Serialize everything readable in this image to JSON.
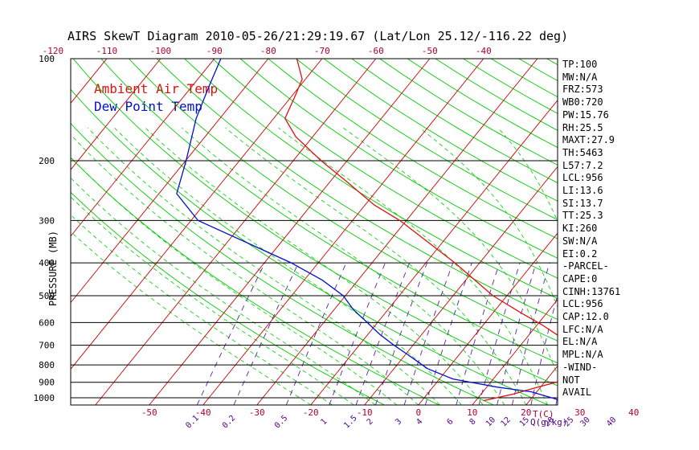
{
  "title": "AIRS SkewT Diagram 2010-05-26/21:29:19.67 (Lat/Lon 25.12/-116.22 deg)",
  "ylabel": "PRESSURE (MB)",
  "xlabel": "T(C)",
  "mixing_ratio_label": "Q(g/kg)",
  "legend": [
    {
      "label": "Ambient Air Temp",
      "color": "#dd1111"
    },
    {
      "label": "Dew Point Temp",
      "color": "#0011cc"
    }
  ],
  "colors": {
    "axis_text": "#b00030",
    "mixing_ratio_text": "#550088",
    "isotherm": "#cc0000",
    "dry_adiabat": "#00cc00",
    "moist_adiabat": "#00cc00",
    "mixing_ratio_line": "#5522aa",
    "isobar": "#000000"
  },
  "indices": [
    "TP:100",
    "MW:N/A",
    "FRZ:573",
    "WB0:720",
    "PW:15.76",
    "RH:25.5",
    "MAXT:27.9",
    "TH:5463",
    "L57:7.2",
    "LCL:956",
    "LI:13.6",
    "SI:13.7",
    "TT:25.3",
    "KI:260",
    "SW:N/A",
    "EI:0.2",
    "-PARCEL-",
    "CAPE:0",
    "CINH:13761",
    "LCL:956",
    "CAP:12.0",
    "LFC:N/A",
    "EL:N/A",
    "MPL:N/A",
    "-WIND-",
    "NOT",
    "AVAIL"
  ],
  "chart_data": {
    "type": "line",
    "title": "AIRS SkewT Diagram 2010-05-26/21:29:19.67 (Lat/Lon 25.12/-116.22 deg)",
    "ylabel": "PRESSURE (MB)",
    "xlabel": "T(C)",
    "y_scale": "log",
    "ylim": [
      1050,
      100
    ],
    "pressure_ticks": [
      100,
      200,
      300,
      400,
      500,
      600,
      700,
      800,
      900,
      1000
    ],
    "top_temp_ticks": [
      -120,
      -110,
      -100,
      -90,
      -80,
      -70,
      -60,
      -50,
      -40
    ],
    "bottom_temp_ticks": [
      -50,
      -40,
      -30,
      -20,
      -10,
      0,
      10,
      20,
      30,
      40
    ],
    "mixing_ratio_ticks": [
      "0.1",
      "0.2",
      "0.5",
      "1",
      "1.5",
      "2",
      "3",
      "4",
      "6",
      "8",
      "10",
      "12",
      "15",
      "20",
      "25",
      "30",
      "40"
    ],
    "series": [
      {
        "name": "Ambient Air Temp",
        "pressure": [
          1020,
          975,
          930,
          880,
          820,
          740,
          700,
          650,
          610,
          560,
          500,
          400,
          300,
          270,
          230,
          200,
          170,
          150,
          130,
          115,
          100
        ],
        "values": [
          11.4,
          16.0,
          19.5,
          24.0,
          24.8,
          23.0,
          20.0,
          15.0,
          11.0,
          5.0,
          -2.6,
          -14.6,
          -31.2,
          -38.3,
          -47.0,
          -54.8,
          -63.1,
          -67.9,
          -69.3,
          -70.6,
          -74.7
        ]
      },
      {
        "name": "Dew Point Temp",
        "pressure": [
          1030,
          960,
          930,
          880,
          820,
          760,
          700,
          650,
          600,
          550,
          500,
          450,
          400,
          350,
          300,
          250,
          200,
          150,
          120,
          100
        ],
        "values": [
          27.1,
          19.0,
          12.0,
          2.5,
          -3.8,
          -8.4,
          -13.5,
          -17.8,
          -21.9,
          -26.4,
          -30.4,
          -36.6,
          -45.0,
          -56.0,
          -68.7,
          -76.7,
          -79.9,
          -84.4,
          -86.9,
          -88.8
        ]
      }
    ]
  }
}
